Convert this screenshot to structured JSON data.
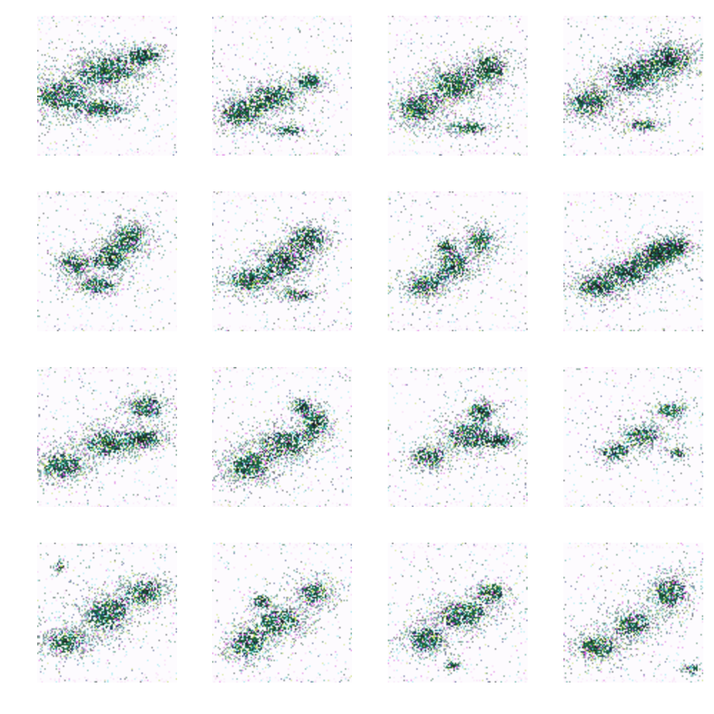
{
  "figure": {
    "rows": 4,
    "cols": 4,
    "background": "#ffffff",
    "tile_background": "#fdfbfe",
    "palette": {
      "dark_green": "#0f5a33",
      "navy": "#152a6e",
      "teal": "#1d8f7a",
      "cyan": "#6fe0e8",
      "magenta": "#d44fd8",
      "pink": "#f2b6f0",
      "yellow_green": "#b8d84a",
      "black": "#111518"
    }
  }
}
